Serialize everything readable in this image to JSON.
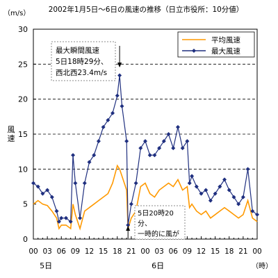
{
  "chart_data": {
    "type": "line",
    "title": "2002年1月5日～6日の風速の推移（日立市役所：10分値）",
    "ylabel": "風速",
    "yunit": "（m/s）",
    "xunit": "（時）",
    "ylim": [
      0,
      30
    ],
    "yticks": [
      0,
      5,
      10,
      15,
      20,
      25,
      30
    ],
    "xticks": [
      "00",
      "03",
      "06",
      "09",
      "12",
      "15",
      "18",
      "21",
      "00",
      "03",
      "06",
      "09",
      "12",
      "15",
      "18",
      "21",
      "00"
    ],
    "day_labels": [
      {
        "label": "5日",
        "at_hour": 3
      },
      {
        "label": "6日",
        "at_hour": 27
      }
    ],
    "grid": "horizontal dashed at 10, 15, 20, 25",
    "legend": {
      "position": "top-right"
    },
    "x_range_hours": [
      0,
      48
    ],
    "series": [
      {
        "name": "平均風速",
        "color": "#FF9900",
        "marker": "none",
        "x_hours": [
          0,
          1,
          2,
          3,
          4,
          5,
          5.5,
          6,
          7,
          8,
          8.5,
          9,
          10,
          11,
          12,
          13,
          14,
          15,
          16,
          17,
          18,
          18.5,
          19,
          20,
          20.3,
          21,
          22,
          23,
          24,
          25,
          26,
          27,
          28,
          29,
          30,
          31,
          32,
          33,
          33.5,
          34,
          35,
          36,
          37,
          38,
          39,
          40,
          41,
          42,
          43,
          44,
          45,
          46,
          47,
          48
        ],
        "values": [
          5,
          5.5,
          5,
          4.8,
          4,
          3,
          1.5,
          2,
          2,
          1.5,
          5,
          3.5,
          1.5,
          4,
          4.5,
          5,
          5.5,
          6,
          6.5,
          8,
          10.5,
          10,
          9,
          7,
          1.5,
          3,
          4,
          7.5,
          8,
          6.5,
          6,
          7,
          7.5,
          8,
          7.5,
          8.5,
          7,
          7.5,
          4.5,
          5,
          4,
          3.5,
          4,
          3,
          3.5,
          4,
          4.5,
          4,
          3.5,
          3,
          3.5,
          5.5,
          3,
          2.5
        ]
      },
      {
        "name": "最大風速",
        "color": "#1F2F7F",
        "marker": "diamond",
        "x_hours": [
          0,
          1,
          2,
          3,
          4,
          5,
          5.5,
          6,
          7,
          8,
          8.5,
          9,
          10,
          11,
          12,
          13,
          14,
          15,
          16,
          17,
          18,
          18.5,
          19,
          20,
          20.3,
          21,
          22,
          23,
          24,
          25,
          26,
          27,
          28,
          29,
          30,
          31,
          32,
          33,
          33.5,
          34,
          35,
          36,
          37,
          38,
          39,
          40,
          41,
          42,
          43,
          44,
          45,
          46,
          47,
          48
        ],
        "values": [
          8,
          7.5,
          6.5,
          7,
          6,
          4,
          2.5,
          3,
          3,
          2.5,
          12,
          8,
          3,
          8,
          11,
          12,
          14,
          16,
          17,
          18,
          20.5,
          23.4,
          19,
          14,
          2,
          5,
          8,
          13,
          14,
          12,
          12,
          13,
          14,
          15,
          13,
          16,
          13,
          14,
          8,
          9,
          7.5,
          6.5,
          7,
          5.5,
          6.5,
          7.5,
          8.5,
          7,
          6,
          5,
          6,
          10,
          4,
          3.5
        ]
      }
    ],
    "annotations": [
      {
        "text": [
          "最大瞬間風速",
          "5日18時29分、",
          "西北西23.4m/s"
        ],
        "arrow_to_hour": 18.5
      },
      {
        "text": [
          "5日20時20",
          "分、",
          "一時的に風が"
        ],
        "arrow_to_hour": 20.3
      }
    ]
  }
}
